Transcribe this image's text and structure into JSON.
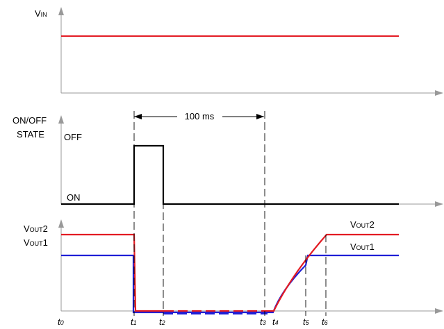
{
  "panels": {
    "vin": {
      "label_main": "V",
      "label_sub": "IN"
    },
    "onoff": {
      "label_line1": "ON/OFF",
      "label_line2": "STATE",
      "off_label": "OFF",
      "on_label": "ON"
    },
    "vout": {
      "left_vout2_main": "V",
      "left_vout2_sub": "OUT",
      "left_vout2_suffix": "2",
      "left_vout1_main": "V",
      "left_vout1_sub": "OUT",
      "left_vout1_suffix": "1",
      "right_vout2_main": "V",
      "right_vout2_sub": "OUT",
      "right_vout2_suffix": "2",
      "right_vout1_main": "V",
      "right_vout1_sub": "OUT",
      "right_vout1_suffix": "1"
    }
  },
  "interval": {
    "label": "100 ms"
  },
  "time_markers": [
    {
      "main": "t",
      "sub": "0"
    },
    {
      "main": "t",
      "sub": "1"
    },
    {
      "main": "t",
      "sub": "2"
    },
    {
      "main": "t",
      "sub": "3"
    },
    {
      "main": "t",
      "sub": "4"
    },
    {
      "main": "t",
      "sub": "5"
    },
    {
      "main": "t",
      "sub": "6"
    }
  ],
  "colors": {
    "vin_trace": "#e31b23",
    "vout2_trace": "#e31b23",
    "vout1_trace": "#1f1fd6",
    "onoff_trace": "#000000",
    "axis": "#999999"
  }
}
